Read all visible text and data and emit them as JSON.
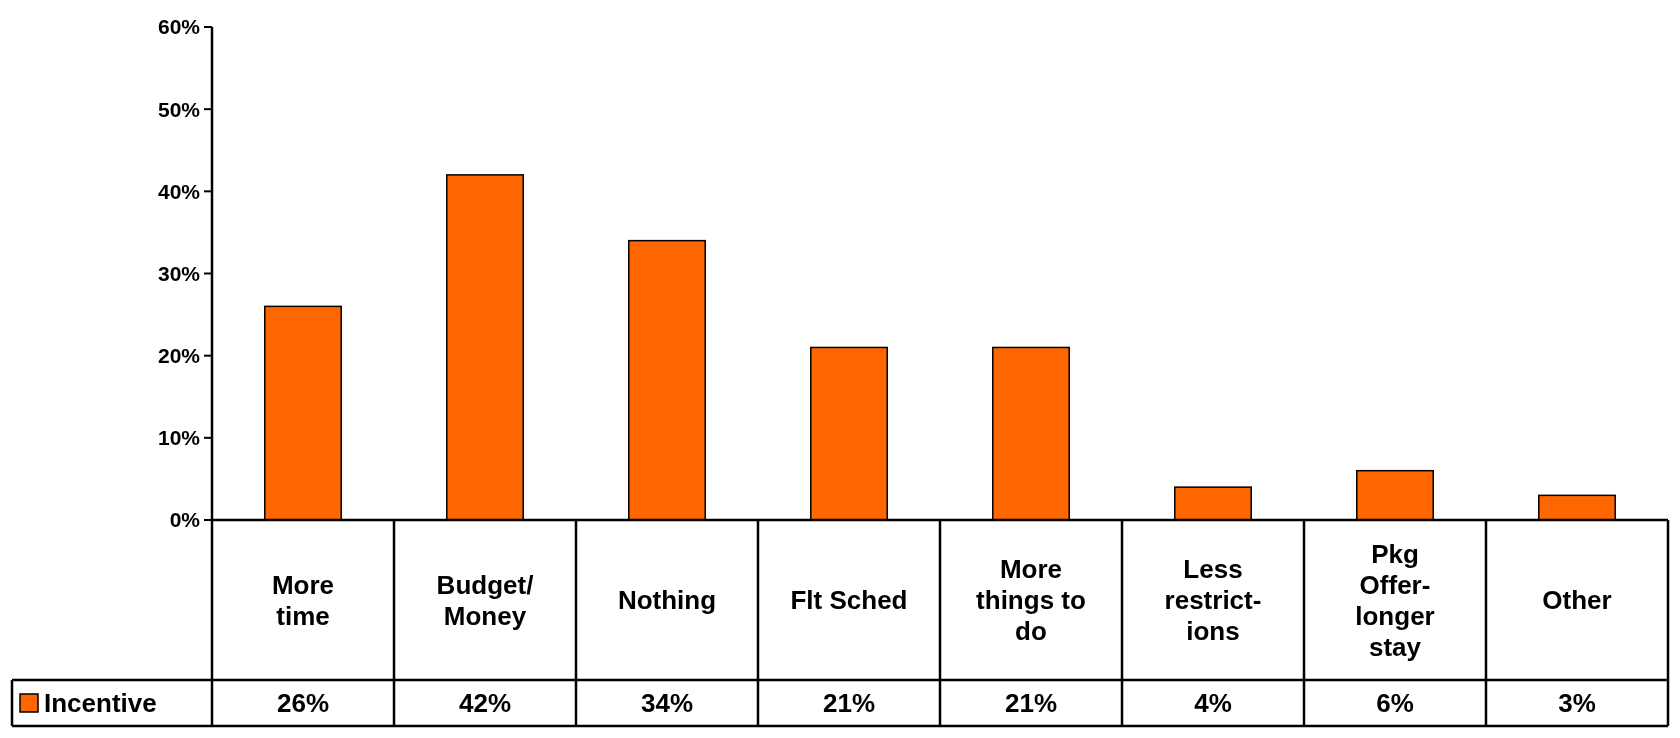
{
  "chart_data": {
    "type": "bar",
    "categories": [
      "More\ntime",
      "Budget/\nMoney",
      "Nothing",
      "Flt Sched",
      "More\nthings to\ndo",
      "Less\nrestrict-\nions",
      "Pkg\nOffer-\nlonger\nstay",
      "Other"
    ],
    "series": [
      {
        "name": "Incentive",
        "color": "#ff6600",
        "values": [
          26,
          42,
          34,
          21,
          21,
          4,
          6,
          3
        ]
      }
    ],
    "ylim": [
      0,
      60
    ],
    "yticks": [
      {
        "value": 0,
        "label": "0%"
      },
      {
        "value": 10,
        "label": "10%"
      },
      {
        "value": 20,
        "label": "20%"
      },
      {
        "value": 30,
        "label": "30%"
      },
      {
        "value": 40,
        "label": "40%"
      },
      {
        "value": 50,
        "label": "50%"
      },
      {
        "value": 60,
        "label": "60%"
      }
    ],
    "value_labels": [
      "26%",
      "42%",
      "34%",
      "21%",
      "21%",
      "4%",
      "6%",
      "3%"
    ],
    "legend": "bottom left",
    "grid": false
  }
}
